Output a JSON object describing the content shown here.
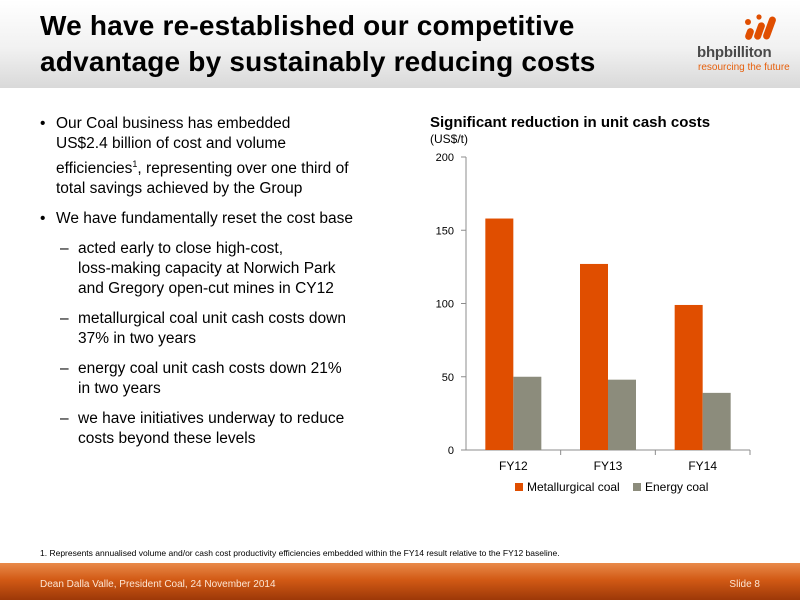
{
  "slide": {
    "title_line1": "We have re-established our competitive",
    "title_line2": "advantage by sustainably reducing costs",
    "logo_word": "bhpbilliton",
    "logo_tag": "resourcing the future",
    "footnote": "1.  Represents annualised volume and/or cash cost productivity efficiencies embedded within the FY14 result relative to the FY12 baseline.",
    "footer_left": "Dean Dalla Valle, President Coal, 24 November 2014",
    "footer_right": "Slide 8",
    "colors": {
      "accent": "#e04e00",
      "secondary": "#8c8c7c",
      "footer": "#d25a15"
    }
  },
  "bullets": {
    "b1_a": "Our Coal business has embedded",
    "b1_b": "US$2.4 billion of cost and volume",
    "b1_c": "efficiencies",
    "b1_sup": "1",
    "b1_d": ", representing over one third of",
    "b1_e": "total savings achieved by the Group",
    "b2": "We have fundamentally reset the cost base",
    "s1_a": "acted early to close high-cost,",
    "s1_b": "loss-making capacity at Norwich Park",
    "s1_c": "and Gregory open-cut mines in CY12",
    "s2_a": "metallurgical coal unit cash costs down",
    "s2_b": "37% in two years",
    "s3_a": "energy coal unit cash costs down 21%",
    "s3_b": "in two years",
    "s4_a": "we have initiatives underway to reduce",
    "s4_b": "costs beyond these levels"
  },
  "chart_data": {
    "type": "bar",
    "title": "Significant reduction in unit cash costs",
    "unit": "(US$/t)",
    "categories": [
      "FY12",
      "FY13",
      "FY14"
    ],
    "series": [
      {
        "name": "Metallurgical coal",
        "values": [
          158,
          127,
          99
        ],
        "color": "#e04e00"
      },
      {
        "name": "Energy coal",
        "values": [
          50,
          48,
          39
        ],
        "color": "#8c8c7c"
      }
    ],
    "yticks": [
      0,
      50,
      100,
      150,
      200
    ],
    "ylim": [
      0,
      200
    ],
    "grid": false,
    "legend": "bottom"
  }
}
